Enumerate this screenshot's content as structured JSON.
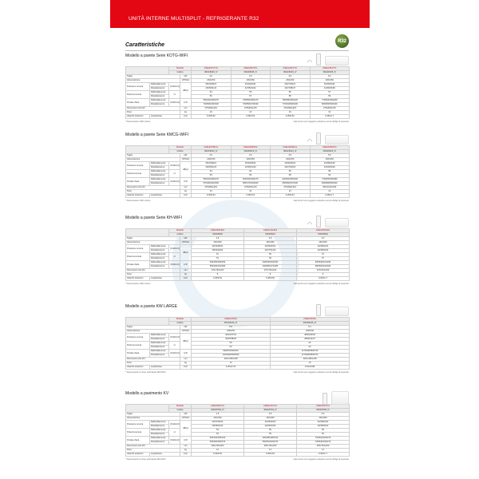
{
  "header": {
    "title": "UNITÀ INTERNE MULTISPLIT - REFRIGERANTE R32",
    "badge": "R32"
  },
  "heading": "Caratteristiche",
  "row_labels": {
    "modello": "Modello",
    "codice": "Codice",
    "taglia": "Taglia",
    "alimentazione": "Alimentazione",
    "pressione": "Pressione sonora",
    "potenza": "Potenza sonora",
    "portata": "Portata d'aria",
    "dimensioni": "Dimensioni (AxLxP)",
    "peso": "Peso",
    "attacchi": "Attacchi tubazioni",
    "raff": "Raffreddamento",
    "risc": "Riscaldamento",
    "liq": "Liquido/Gas",
    "vhml": "(VH/H/L/Q)",
    "h": "H",
    "u_kw": "kW",
    "u_v": "V/Ph/Hz",
    "u_db": "dB(A)",
    "u_m3": "m³/h",
    "u_mm": "mm",
    "u_kg": "kg",
    "u_inch": "inch"
  },
  "sections": [
    {
      "title": "Modello a parete Serie KOTG-WIFI",
      "img": "wall",
      "wifi": true,
      "models": [
        "ASEH07KOTG",
        "ASEH09KOTG",
        "ASEH12KOTG",
        "ASEH18KOTG"
      ],
      "codes": [
        "3NGF8230_IV",
        "3NGF8235_IV",
        "3NGF8240_IV",
        "3NGF8245_IV"
      ],
      "taglia": [
        "2.0",
        "2.5",
        "3.5",
        "5.0"
      ],
      "alim": [
        "230/1/50",
        "230/1/50",
        "230/1/50",
        "230/1/50"
      ],
      "ps_raff": [
        "35/33/28/21",
        "40/34/29/21",
        "40/37/30/21",
        "45/36/30/21"
      ],
      "ps_risc": [
        "40/35/31/22",
        "42/35/34/22",
        "42/37/35/27",
        "44/39/33/28"
      ],
      "pw_raff": [
        "54",
        "55",
        "56",
        "57"
      ],
      "pw_risc": [
        "56",
        "57",
        "58",
        "59"
      ],
      "pa_raff": [
        "550/440/400/270",
        "750/550/450/270",
        "780/580/450/320",
        "770/600/450/280"
      ],
      "pa_risc": [
        "720/590/400/330",
        "700/550/470/330",
        "770/640/500/330",
        "800/650/530/340"
      ],
      "dim": [
        "275x834x210",
        "275x834x215",
        "275x834x215",
        "275x834x215"
      ],
      "peso": [
        "10",
        "10",
        "10",
        "10"
      ],
      "att": [
        "6.35/9.52",
        "6.35/9.52",
        "6.35/9.52",
        "6.35/12.7"
      ],
      "note_left": "* Telecomando e WiFi incluso",
      "note_right": "I dati tecnici sono soggetti a variazione senza obbligo di preavviso"
    },
    {
      "title": "Modello a parete Serie KMCG-WIFI",
      "img": "wall",
      "wifi": true,
      "models": [
        "ASEH07KMCG",
        "ASEH09KMCG",
        "ASEH12KMCG",
        "ASEH18KMCG"
      ],
      "codes": [
        "3NGF8212_IV",
        "3NGF8213_IV",
        "3NGF8214_IV",
        "3NGF8215_IV"
      ],
      "taglia": [
        "2.0",
        "2.5",
        "3.5",
        "5.0"
      ],
      "alim": [
        "230/1/50",
        "230/1/50",
        "230/1/50",
        "230/1/50"
      ],
      "ps_raff": [
        "35/33/28/21",
        "36/33/28/21",
        "40/36/30/22",
        "43/38/32/26"
      ],
      "ps_risc": [
        "40/35/31/23",
        "42/36/31/23",
        "42/37/33/23",
        "44/40/35/29"
      ],
      "pw_raff": [
        "54",
        "54",
        "56",
        "58"
      ],
      "pw_risc": [
        "56",
        "56",
        "58",
        "60"
      ],
      "pa_raff": [
        "550/440/400/270",
        "560/450/400/270",
        "620/540/450/300",
        "770/650/530/380"
      ],
      "pa_risc": [
        "570/460/420/300",
        "580/470/420/300",
        "650/560/470/330",
        "820/680/560/400"
      ],
      "dim": [
        "275x834x210",
        "275x834x210",
        "275x834x210",
        "300x1010x230"
      ],
      "peso": [
        "10",
        "10",
        "10",
        "13"
      ],
      "att": [
        "6.35/9.52",
        "6.35/9.52",
        "6.35/9.52",
        "6.35/12.7"
      ],
      "note_left": "* Telecomando e WiFi incluso",
      "note_right": "I dati tecnici sono soggetti a variazione senza obbligo di preavviso"
    },
    {
      "title": "Modello a parete Serie KH-WIFI",
      "img": "wall",
      "wifi": true,
      "models": [
        "ASEH09KHDA",
        "ASEH12KHDA",
        "ASEH18KHDA"
      ],
      "codes": [
        "3NGF8930",
        "3NGF8931",
        "3NGF8932"
      ],
      "taglia": [
        "2.5",
        "3.5",
        "5.0"
      ],
      "alim": [
        "230/1/50",
        "230/1/50",
        "230/1/50"
      ],
      "ps_raff": [
        "36/33/28/21",
        "40/36/30/21",
        "42/38/32/21"
      ],
      "ps_risc": [
        "38/34/29/22",
        "42/37/31/22",
        "42/38/33/22"
      ],
      "pw_raff": [
        "51",
        "56",
        "57"
      ],
      "pw_risc": [
        "51",
        "56",
        "57"
      ],
      "pa_raff": [
        "530/450/390/250",
        "630/540/450/250",
        "660/530/410/290"
      ],
      "pa_risc": [
        "550/460/400/280",
        "640/550/470/280",
        "680/560/420/300"
      ],
      "dim": [
        "270x794x222",
        "270x794x222",
        "270x914x232"
      ],
      "peso": [
        "8",
        "8",
        "9"
      ],
      "att": [
        "6.35/9.52",
        "6.35/9.52",
        "6.35/12.7"
      ],
      "note_left": "* Telecomando e WiFi incluso",
      "note_right": "I dati tecnici sono soggetti a variazione senza obbligo di preavviso"
    },
    {
      "title": "Modello a parete KW LARGE",
      "img": "wall",
      "wifi": false,
      "models": [
        "ASEH24KWA",
        "ASEH30KWA"
      ],
      "codes": [
        "3NGF8240_IV",
        "3NGF8245_IV"
      ],
      "taglia": [
        "6.8",
        "8.1"
      ],
      "alim": [
        "230/1/50",
        "230/1/50"
      ],
      "ps_raff": [
        "46/44/37/34",
        "48/46/40/36"
      ],
      "ps_risc": [
        "46/45/38/35",
        "48/46/41/37"
      ],
      "pw_raff": [
        "59",
        "62"
      ],
      "pw_risc": [
        "60",
        "63"
      ],
      "pa_raff": [
        "990/870/640/510",
        "1170/990/850/700"
      ],
      "pa_risc": [
        "1020/900/660/530",
        "1170/990/850/700"
      ],
      "dim": [
        "320x1150x248",
        "320x1150x248"
      ],
      "peso": [
        "13",
        "15"
      ],
      "att": [
        "6.35/12.70",
        "9.52/15.88"
      ],
      "note_left": "* Telecomando con timer settimanale RKC120U",
      "note_right": "I dati tecnici sono soggetti a variazione senza obbligo di preavviso"
    },
    {
      "title": "Modello a pavimento KV",
      "img": "floor",
      "wifi": false,
      "models": [
        "ASEH09KVCA",
        "ASEH12KVCA",
        "ASEH18KVCA"
      ],
      "codes": [
        "3NGF8702_IV",
        "3NGF8704_IV",
        "3NGF8705_IV"
      ],
      "taglia": [
        "2.5",
        "3.5",
        "5.0"
      ],
      "alim": [
        "230/1/50",
        "230/1/50",
        "230/1/50"
      ],
      "ps_raff": [
        "39/37/29/22",
        "42/36/30/22",
        "42/38/33/22"
      ],
      "ps_risc": [
        "39/35/32/22",
        "42/35/33/22",
        "40/38/35/22"
      ],
      "pw_raff": [
        "52",
        "55",
        "56"
      ],
      "pw_risc": [
        "52",
        "55",
        "56"
      ],
      "pa_raff": [
        "520/440/350/190",
        "600/480/380/210",
        "700/620/460/270"
      ],
      "pa_risc": [
        "530/460/350/270",
        "650/510/400/270",
        "700/540/430/270"
      ],
      "dim": [
        "600x700x200",
        "600x700x200",
        "600x700x200"
      ],
      "peso": [
        "14",
        "14",
        "14"
      ],
      "att": [
        "6.35/9.52",
        "6.35/9.52",
        "6.35/12.7"
      ],
      "note_left": "* Telecomando con timer settimanale RKC120U",
      "note_right": "I dati tecnici sono soggetti a variazione senza obbligo di preavviso"
    }
  ]
}
